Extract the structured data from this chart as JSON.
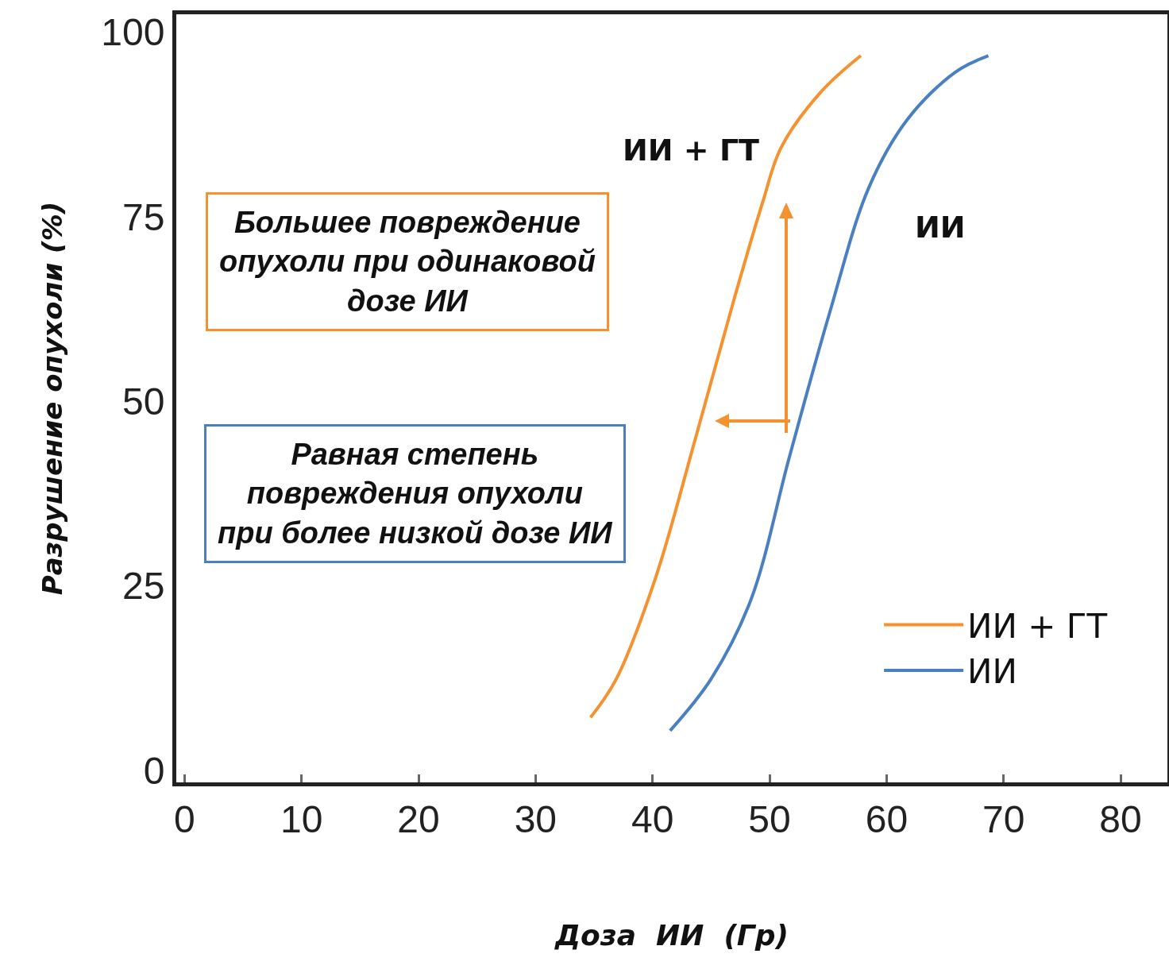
{
  "chart_data": {
    "type": "line",
    "xlabel": "Доза  ИИ  (Гр)",
    "ylabel": "Разрушение опухоли (%)",
    "xlim": [
      -0.7,
      84
    ],
    "xticks": [
      0,
      10,
      20,
      30,
      40,
      50,
      60,
      70,
      80
    ],
    "ylim": [
      -1.6,
      102.4
    ],
    "yticks": [
      0,
      25,
      50,
      75,
      100
    ],
    "grid": false,
    "legend": "bottom right",
    "marker": "none",
    "line_style": "solid",
    "series": [
      {
        "name": "ИИ + ГТ",
        "color": "#f5922f",
        "x": [
          34.7,
          36.9,
          40.3,
          43.6,
          47.0,
          49.4,
          51.0,
          54.4,
          57.8
        ],
        "values": [
          7.2,
          12.4,
          26.3,
          44.6,
          64,
          76.9,
          84.4,
          91.9,
          96.8
        ]
      },
      {
        "name": "ИИ",
        "color": "#4a7fc1",
        "x": [
          41.5,
          45.0,
          48.4,
          51.7,
          55.1,
          58.5,
          61.8,
          65.9,
          68.7
        ],
        "values": [
          5.4,
          12.4,
          23.1,
          42.5,
          61.8,
          79,
          88.2,
          94.6,
          96.8
        ]
      }
    ],
    "annotations": [
      "Большее повреждение\nопухоли при одинаковой\nдозе ИИ",
      "Равная степень\nповреждения опухоли\nпри более низкой дозе ИИ"
    ]
  }
}
